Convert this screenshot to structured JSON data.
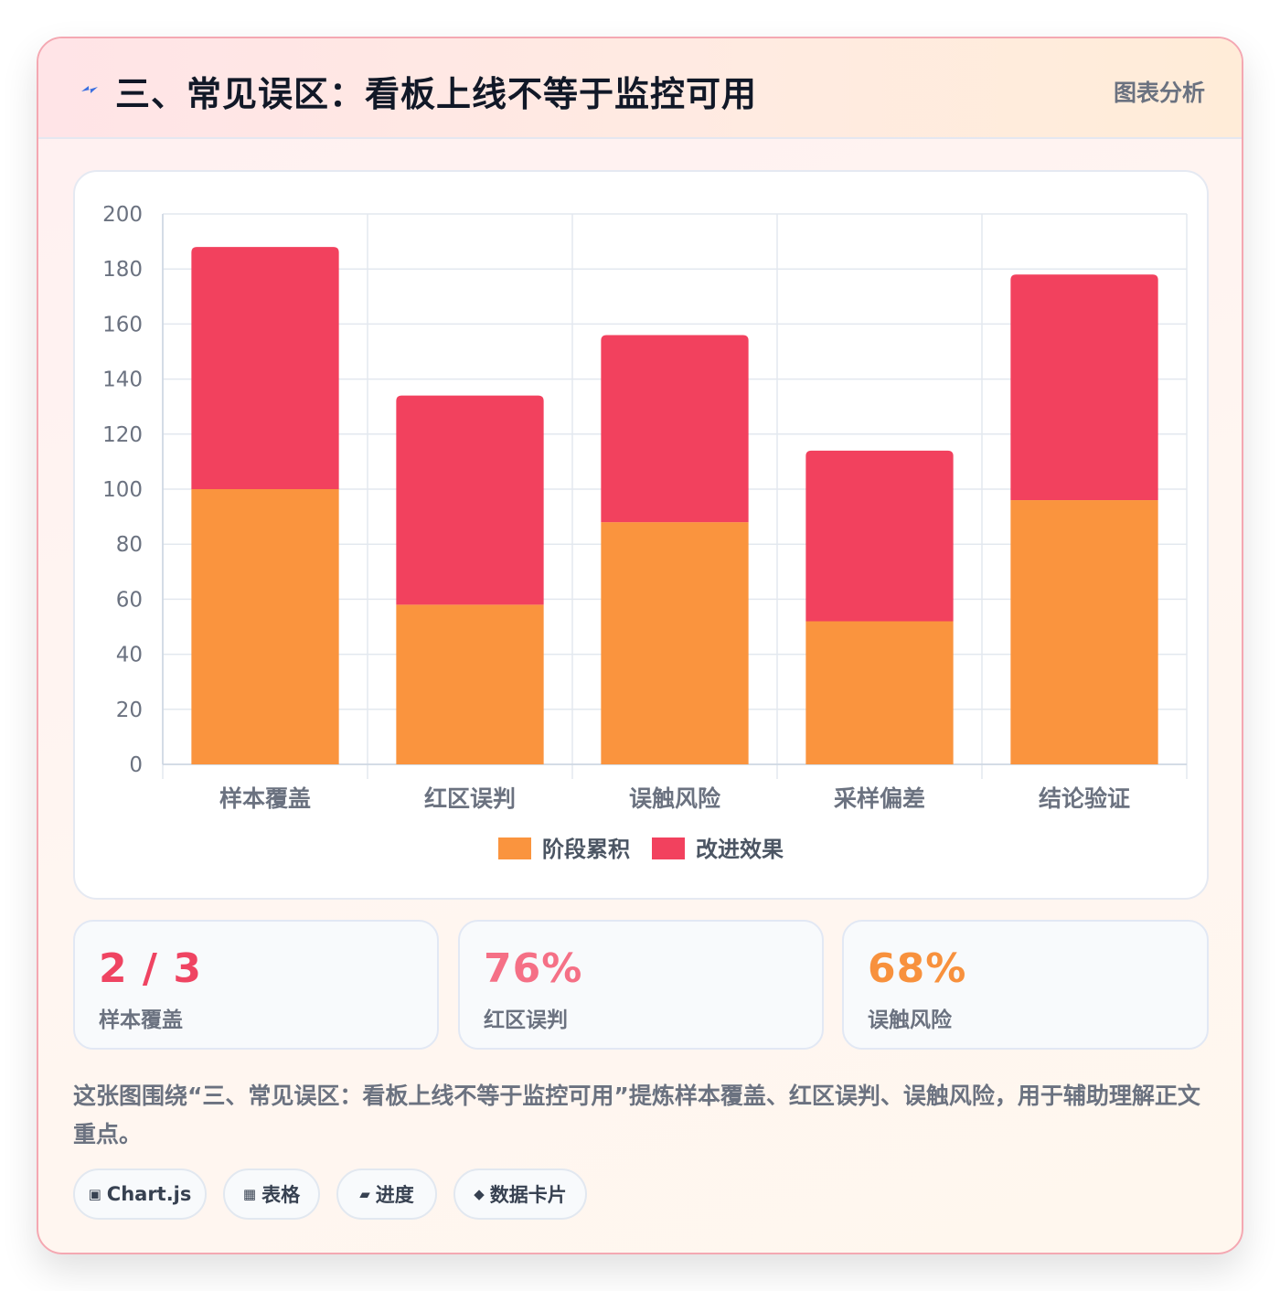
{
  "header": {
    "title": "三、常见误区：看板上线不等于监控可用",
    "tag": "图表分析",
    "icon": "lightning-bolt-icon"
  },
  "chart_data": {
    "type": "bar",
    "stacked": true,
    "categories": [
      "样本覆盖",
      "红区误判",
      "误触风险",
      "采样偏差",
      "结论验证"
    ],
    "series": [
      {
        "name": "阶段累积",
        "color": "#fa943e",
        "values": [
          100,
          58,
          88,
          52,
          96
        ]
      },
      {
        "name": "改进效果",
        "color": "#f2415e",
        "values": [
          88,
          76,
          68,
          62,
          82
        ]
      }
    ],
    "ylim": [
      0,
      200
    ],
    "yticks": [
      0,
      20,
      40,
      60,
      80,
      100,
      120,
      140,
      160,
      180,
      200
    ],
    "grid": true,
    "legend": "bottom"
  },
  "stats": [
    {
      "value": "2 / 3",
      "label": "样本覆盖",
      "color": "#ef4462"
    },
    {
      "value": "76%",
      "label": "红区误判",
      "color": "#f57086"
    },
    {
      "value": "68%",
      "label": "误触风险",
      "color": "#f8913d"
    }
  ],
  "description": "这张图围绕“三、常见误区：看板上线不等于监控可用”提炼样本覆盖、红区误判、误触风险，用于辅助理解正文重点。",
  "chips": [
    {
      "icon": "▣",
      "label": "Chart.js"
    },
    {
      "icon": "▦",
      "label": "表格"
    },
    {
      "icon": "▰",
      "label": "进度"
    },
    {
      "icon": "◆",
      "label": "数据卡片"
    }
  ]
}
